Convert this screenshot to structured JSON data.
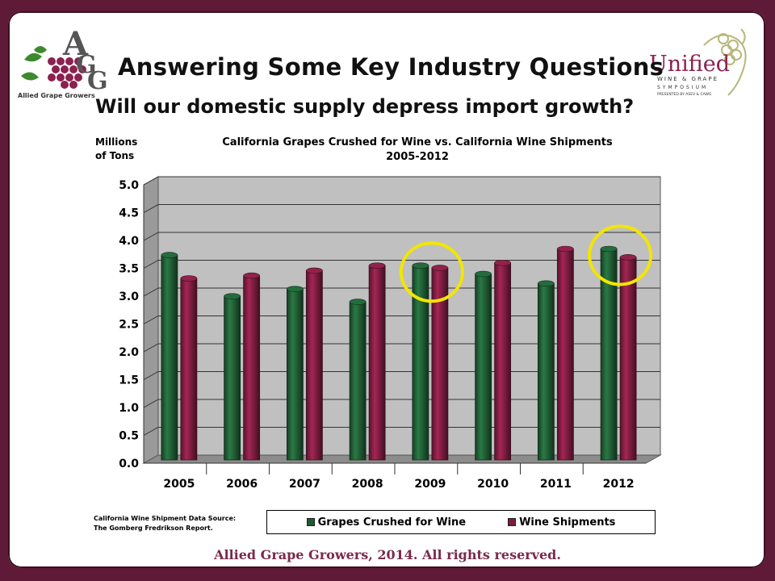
{
  "header": {
    "title": "Answering Some Key Industry Questions",
    "subtitle": "Will our domestic supply depress import growth?"
  },
  "logos": {
    "left_name": "Allied Grape Growers",
    "left_caption": "Allied Grape Growers",
    "right_name": "Unified",
    "right_line1": "WINE & GRAPE",
    "right_line2": "SYMPOSIUM",
    "right_line3": "PRESENTED BY ASEV & CAWG"
  },
  "chart_data": {
    "type": "bar",
    "title_line1": "California Grapes Crushed for Wine vs. California Wine Shipments",
    "title_line2": "2005-2012",
    "ylabel_line1": "Millions",
    "ylabel_line2": "of Tons",
    "ylim": [
      0,
      5
    ],
    "yticks": [
      "0.0",
      "0.5",
      "1.0",
      "1.5",
      "2.0",
      "2.5",
      "3.0",
      "3.5",
      "4.0",
      "4.5",
      "5.0"
    ],
    "categories": [
      "2005",
      "2006",
      "2007",
      "2008",
      "2009",
      "2010",
      "2011",
      "2012"
    ],
    "series": [
      {
        "name": "Grapes Crushed for Wine",
        "color": "#1f5a33",
        "values": [
          3.68,
          2.94,
          3.07,
          2.84,
          3.49,
          3.34,
          3.17,
          3.79
        ]
      },
      {
        "name": "Wine Shipments",
        "color": "#7a1c3e",
        "values": [
          3.26,
          3.31,
          3.4,
          3.49,
          3.45,
          3.54,
          3.79,
          3.64
        ]
      }
    ],
    "highlight_categories": [
      "2009",
      "2012"
    ],
    "highlight_color": "#f2e600",
    "grid": true,
    "legend_position": "bottom"
  },
  "source_note": {
    "line1": "California Wine Shipment Data Source:",
    "line2": "The Gomberg Fredrikson Report."
  },
  "footer": "Allied Grape Growers, 2014.  All rights reserved."
}
